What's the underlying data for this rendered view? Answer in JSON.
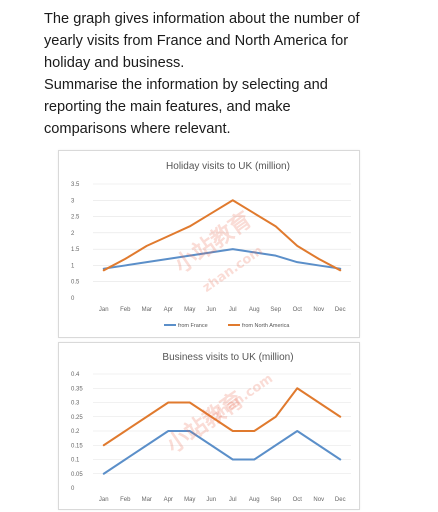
{
  "prompt": {
    "lines": [
      "The graph gives information about the number of",
      "yearly visits from France and North America for",
      "holiday and business.",
      "Summarise the information by selecting and",
      "reporting the main features, and make",
      "comparisons where relevant."
    ]
  },
  "colors": {
    "france": "#5b8fc9",
    "north_america": "#e07a2e"
  },
  "watermark": {
    "text": "小站教育",
    "domain": "zhan.com"
  },
  "chart_data": [
    {
      "type": "line",
      "title": "Holiday visits to UK (million)",
      "categories": [
        "Jan",
        "Feb",
        "Mar",
        "Apr",
        "May",
        "Jun",
        "Jul",
        "Aug",
        "Sep",
        "Oct",
        "Nov",
        "Dec"
      ],
      "yticks": [
        "0",
        "0.5",
        "1",
        "1.5",
        "2",
        "2.5",
        "3",
        "3.5"
      ],
      "ylim": [
        0,
        3.5
      ],
      "grid": true,
      "legend": "bottom",
      "series": [
        {
          "name": "from France",
          "color": "#5b8fc9",
          "values": [
            0.9,
            1.0,
            1.1,
            1.2,
            1.3,
            1.4,
            1.5,
            1.4,
            1.3,
            1.1,
            1.0,
            0.9
          ]
        },
        {
          "name": "from North America",
          "color": "#e07a2e",
          "values": [
            0.85,
            1.2,
            1.6,
            1.9,
            2.2,
            2.6,
            3.0,
            2.6,
            2.2,
            1.6,
            1.2,
            0.85
          ]
        }
      ]
    },
    {
      "type": "line",
      "title": "Business visits to UK (million)",
      "categories": [
        "Jan",
        "Feb",
        "Mar",
        "Apr",
        "May",
        "Jun",
        "Jul",
        "Aug",
        "Sep",
        "Oct",
        "Nov",
        "Dec"
      ],
      "yticks": [
        "0",
        "0.05",
        "0.1",
        "0.15",
        "0.2",
        "0.25",
        "0.3",
        "0.35",
        "0.4"
      ],
      "ylim": [
        0,
        0.4
      ],
      "grid": true,
      "legend": "none",
      "series": [
        {
          "name": "from France",
          "color": "#5b8fc9",
          "values": [
            0.05,
            0.1,
            0.15,
            0.2,
            0.2,
            0.15,
            0.1,
            0.1,
            0.15,
            0.2,
            0.15,
            0.1
          ]
        },
        {
          "name": "from North America",
          "color": "#e07a2e",
          "values": [
            0.15,
            0.2,
            0.25,
            0.3,
            0.3,
            0.25,
            0.2,
            0.2,
            0.25,
            0.35,
            0.3,
            0.25
          ]
        }
      ]
    }
  ]
}
